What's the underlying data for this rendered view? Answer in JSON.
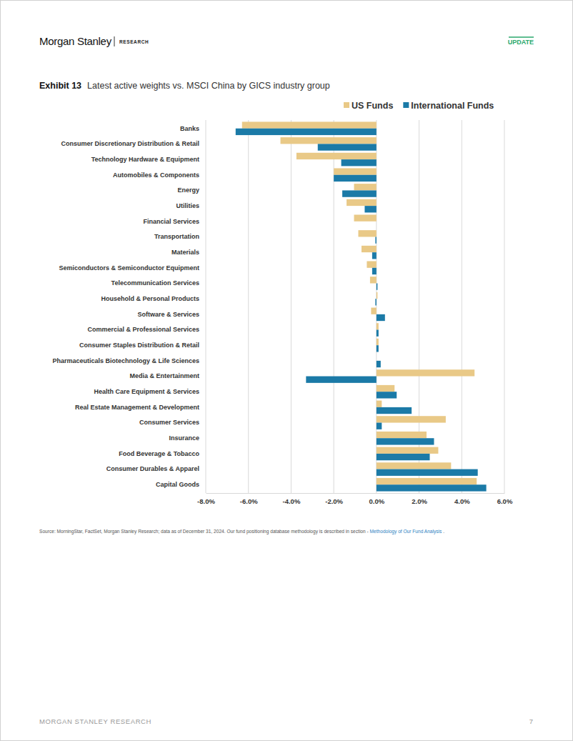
{
  "page": {
    "brand": "Morgan Stanley",
    "brand_section": "RESEARCH",
    "tag": "UPDATE",
    "footer": "MORGAN STANLEY RESEARCH",
    "page_number": "7"
  },
  "chart_data": {
    "type": "bar",
    "orientation": "horizontal",
    "exhibit": "Exhibit 13",
    "title": "Latest active weights vs. MSCI China by GICS industry group",
    "categories": [
      "Banks",
      "Consumer Discretionary Distribution & Retail",
      "Technology Hardware & Equipment",
      "Automobiles & Components",
      "Energy",
      "Utilities",
      "Financial Services",
      "Transportation",
      "Materials",
      "Semiconductors & Semiconductor Equipment",
      "Telecommunication Services",
      "Household & Personal Products",
      "Software & Services",
      "Commercial & Professional Services",
      "Consumer Staples Distribution & Retail",
      "Pharmaceuticals Biotechnology & Life Sciences",
      "Media & Entertainment",
      "Health Care Equipment & Services",
      "Real Estate Management & Development",
      "Consumer Services",
      "Insurance",
      "Food Beverage & Tobacco",
      "Consumer Durables & Apparel",
      "Capital Goods"
    ],
    "series": [
      {
        "name": "US Funds",
        "color": "#e9c987",
        "values": [
          -6.3,
          -4.5,
          -3.75,
          -2.0,
          -1.05,
          -1.4,
          -1.05,
          -0.85,
          -0.7,
          -0.45,
          -0.3,
          0.05,
          -0.25,
          0.1,
          0.1,
          0.0,
          4.6,
          0.85,
          0.25,
          3.25,
          2.35,
          2.9,
          3.5,
          4.7
        ]
      },
      {
        "name": "International Funds",
        "color": "#1b7aa7",
        "values": [
          -6.6,
          -2.75,
          -1.65,
          -2.0,
          -1.6,
          -0.55,
          0.0,
          -0.05,
          -0.2,
          -0.2,
          0.05,
          -0.05,
          0.4,
          0.1,
          0.1,
          0.2,
          -3.3,
          0.95,
          1.65,
          0.25,
          2.7,
          2.5,
          4.75,
          5.15
        ]
      }
    ],
    "xlim": [
      -8,
      6
    ],
    "xticks": [
      {
        "value": -8,
        "label": "-8.0%"
      },
      {
        "value": -6,
        "label": "-6.0%"
      },
      {
        "value": -4,
        "label": "-4.0%"
      },
      {
        "value": -2,
        "label": "-2.0%"
      },
      {
        "value": 0,
        "label": "0.0%"
      },
      {
        "value": 2,
        "label": "2.0%"
      },
      {
        "value": 4,
        "label": "4.0%"
      },
      {
        "value": 6,
        "label": "6.0%"
      }
    ],
    "grid": true,
    "legend": "top-right",
    "source": "Source: MorningStar, FactSet, Morgan Stanley Research; data as of December 31, 2024. Our fund positioning database methodology is described in section - ",
    "source_link": "Methodology of Our Fund Analysis",
    "source_end": " ."
  }
}
